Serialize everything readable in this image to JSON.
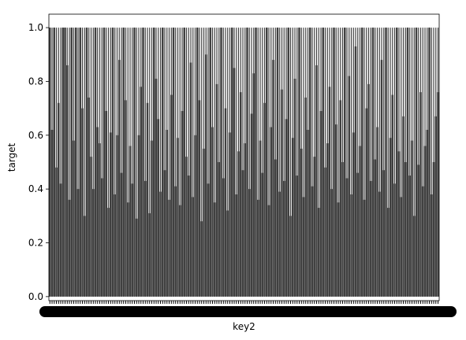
{
  "chart_data": {
    "type": "bar",
    "title": "",
    "xlabel": "key2",
    "ylabel": "target",
    "ylim": [
      -0.015,
      1.05
    ],
    "y_ticks": [
      "0.0",
      "0.2",
      "0.4",
      "0.6",
      "0.8",
      "1.0"
    ],
    "y_tick_values": [
      0.0,
      0.2,
      0.4,
      0.6,
      0.8,
      1.0
    ],
    "grid": false,
    "legend": "none",
    "bar_count": 180,
    "bar_color": "#3f3f3f",
    "errorbar_color": "#424242",
    "category_labels": "dense overlapping unreadable tick labels",
    "values": [
      1.0,
      0.62,
      1.0,
      0.48,
      0.72,
      0.42,
      1.0,
      1.0,
      0.86,
      0.36,
      1.0,
      0.58,
      1.0,
      0.4,
      1.0,
      0.7,
      0.3,
      1.0,
      0.74,
      0.52,
      0.4,
      1.0,
      0.63,
      0.57,
      0.44,
      1.0,
      0.69,
      0.33,
      0.61,
      1.0,
      0.38,
      0.6,
      0.88,
      0.46,
      1.0,
      0.73,
      0.35,
      0.56,
      0.42,
      1.0,
      0.29,
      0.6,
      0.78,
      1.0,
      0.43,
      0.72,
      0.31,
      0.58,
      1.0,
      0.81,
      0.66,
      0.39,
      1.0,
      0.47,
      0.62,
      0.36,
      0.75,
      1.0,
      0.41,
      0.59,
      0.34,
      0.69,
      1.0,
      0.52,
      0.45,
      0.87,
      0.37,
      0.6,
      1.0,
      0.73,
      0.28,
      0.55,
      0.9,
      0.42,
      1.0,
      0.63,
      0.35,
      0.79,
      0.5,
      1.0,
      0.44,
      0.7,
      0.32,
      0.61,
      1.0,
      0.85,
      0.38,
      0.54,
      0.76,
      0.47,
      0.57,
      1.0,
      0.4,
      0.68,
      0.83,
      1.0,
      0.36,
      0.58,
      0.46,
      0.72,
      1.0,
      0.34,
      0.63,
      0.88,
      0.51,
      1.0,
      0.39,
      0.77,
      0.43,
      0.66,
      1.0,
      0.3,
      0.59,
      0.81,
      0.45,
      1.0,
      0.55,
      0.37,
      0.74,
      0.62,
      1.0,
      0.41,
      0.52,
      0.86,
      0.33,
      0.69,
      1.0,
      0.48,
      0.57,
      0.78,
      0.4,
      1.0,
      0.64,
      0.35,
      0.73,
      0.5,
      1.0,
      0.44,
      0.82,
      0.38,
      0.61,
      0.93,
      0.46,
      0.56,
      1.0,
      0.36,
      0.7,
      0.79,
      0.43,
      1.0,
      0.51,
      0.63,
      0.39,
      0.88,
      0.47,
      1.0,
      0.33,
      0.59,
      0.75,
      0.42,
      1.0,
      0.54,
      0.37,
      0.67,
      0.5,
      1.0,
      0.45,
      0.58,
      0.3,
      1.0,
      0.49,
      0.76,
      0.41,
      0.56,
      0.62,
      1.0,
      0.38,
      0.5,
      0.67,
      0.76
    ]
  }
}
